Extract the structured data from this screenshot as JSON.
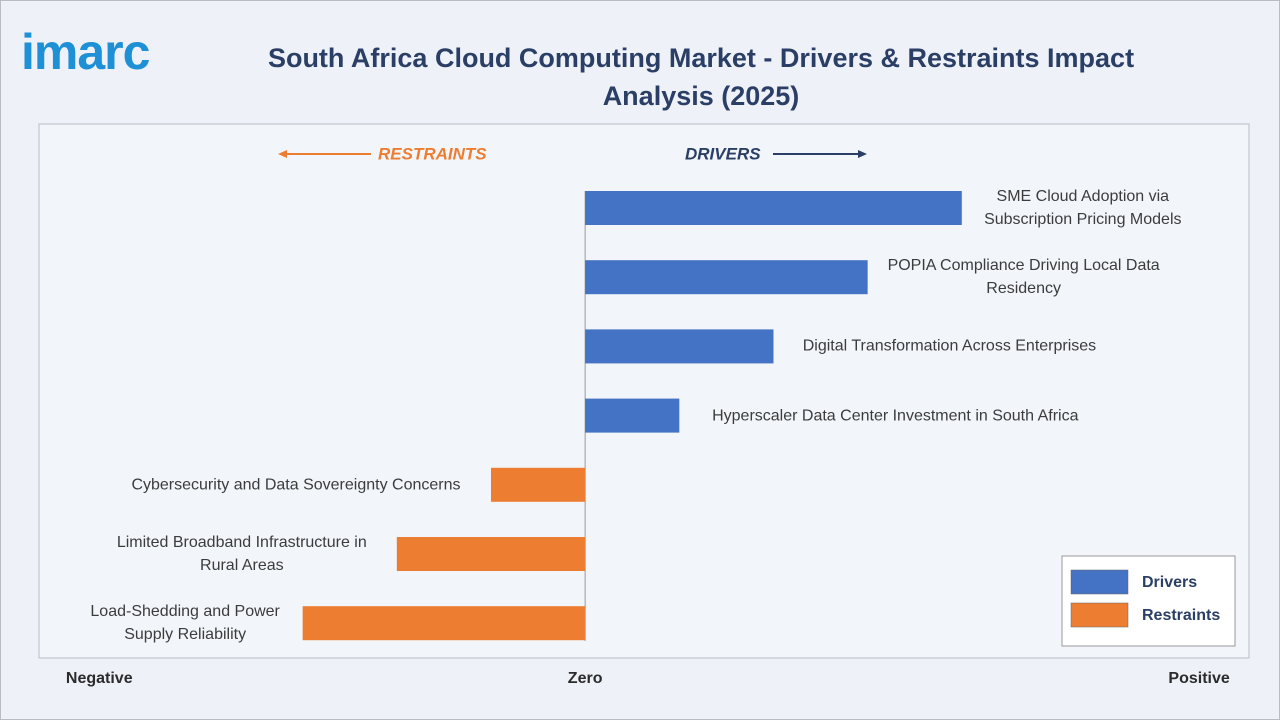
{
  "logo": "imarc",
  "chart_data": {
    "type": "bar",
    "orientation": "horizontal",
    "title": "South Africa Cloud Computing Market - Drivers & Restraints Impact Analysis (2025)",
    "annotations": [
      "RESTRAINTS",
      "DRIVERS"
    ],
    "categories": [
      "SME Cloud Adoption via Subscription Pricing Models",
      "POPIA Compliance Driving Local Data Residency",
      "Digital Transformation Across Enterprises",
      "Hyperscaler Data Center Investment in South Africa",
      "Cybersecurity and Data Sovereignty Concerns",
      "Limited Broadband Infrastructure in Rural Areas",
      "Load-Shedding and Power Supply Reliability"
    ],
    "series": [
      {
        "name": "Drivers",
        "color": "#4472c4",
        "values": [
          4,
          3,
          2,
          1,
          null,
          null,
          null
        ]
      },
      {
        "name": "Restraints",
        "color": "#ed7d31",
        "values": [
          null,
          null,
          null,
          null,
          -1,
          -2,
          -3
        ]
      }
    ],
    "xlim": [
      -5.8,
      7.05
    ],
    "xticks": [
      {
        "value": -5.16,
        "label": "Negative"
      },
      {
        "value": 0,
        "label": "Zero"
      },
      {
        "value": 6.52,
        "label": "Positive"
      }
    ],
    "legend": "lower right"
  }
}
